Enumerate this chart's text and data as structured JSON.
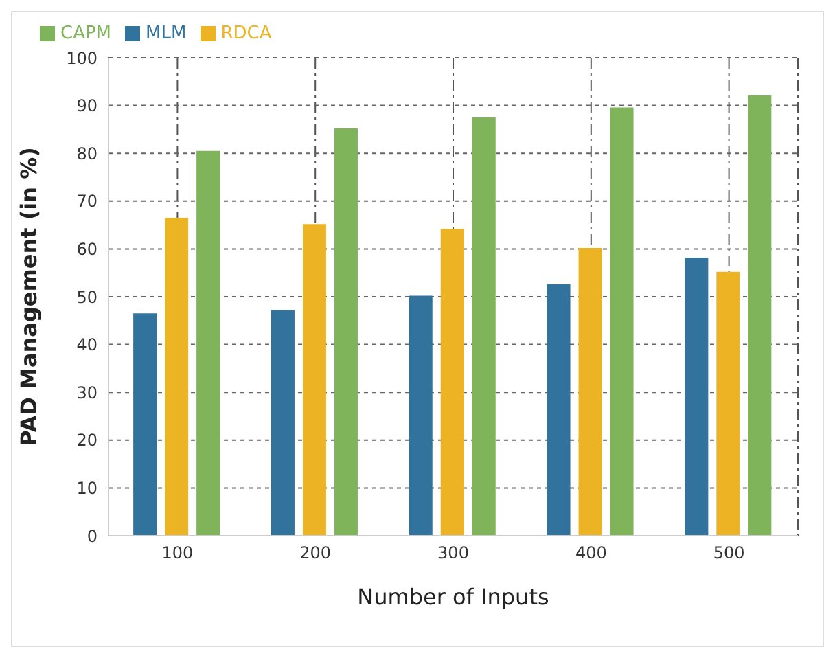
{
  "chart_data": {
    "type": "bar",
    "xlabel": "Number of Inputs",
    "ylabel": "PAD Management (in %)",
    "categories": [
      "100",
      "200",
      "300",
      "400",
      "500"
    ],
    "series": [
      {
        "name": "MLM",
        "color": "#31739c",
        "values": [
          46.5,
          47.2,
          50.2,
          52.6,
          58.2
        ]
      },
      {
        "name": "RDCA",
        "color": "#ecb324",
        "values": [
          66.5,
          65.2,
          64.2,
          60.2,
          55.2
        ]
      },
      {
        "name": "CAPM",
        "color": "#7fb45a",
        "values": [
          80.5,
          85.2,
          87.5,
          89.6,
          92.1
        ]
      }
    ],
    "ylim": [
      0,
      100
    ],
    "yticks": [
      0,
      10,
      20,
      30,
      40,
      50,
      60,
      70,
      80,
      90,
      100
    ],
    "grid": true,
    "legend": "top left"
  }
}
